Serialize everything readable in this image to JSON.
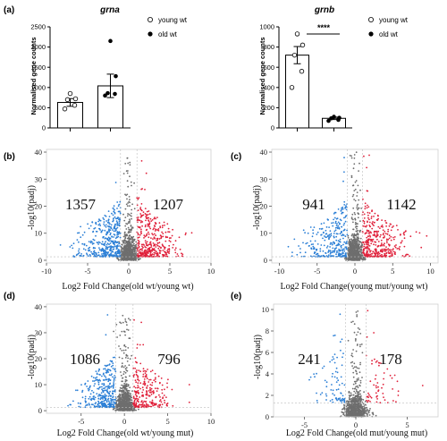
{
  "chart_data": [
    {
      "id": "a1",
      "panel": "(a)",
      "type": "bar",
      "title": "grna",
      "ylabel": "Normalised gene counts",
      "ylim": [
        0,
        2500
      ],
      "yticks": [
        0,
        500,
        1000,
        1500,
        2000,
        2500
      ],
      "categories": [
        "young wt",
        "old wt"
      ],
      "values": [
        630,
        1040
      ],
      "errors": [
        95,
        290
      ],
      "points": [
        [
          470,
          560,
          700,
          720,
          850
        ],
        [
          800,
          840,
          860,
          1280,
          2150
        ]
      ],
      "legend": [
        {
          "label": "young wt",
          "marker": "open-circle"
        },
        {
          "label": "old wt",
          "marker": "filled-circle"
        }
      ],
      "legend_position": "right"
    },
    {
      "id": "a2",
      "panel": "",
      "type": "bar",
      "title": "grnb",
      "ylabel": "Normalised gene counts",
      "ylim": [
        0,
        1000
      ],
      "yticks": [
        0,
        200,
        400,
        600,
        800,
        1000
      ],
      "categories": [
        "young wt",
        "old wt"
      ],
      "values": [
        720,
        95
      ],
      "errors": [
        85,
        12
      ],
      "points": [
        [
          400,
          560,
          720,
          820,
          930
        ],
        [
          70,
          80,
          95,
          100,
          110
        ]
      ],
      "significance": "****",
      "legend": [
        {
          "label": "young wt",
          "marker": "open-circle"
        },
        {
          "label": "old wt",
          "marker": "filled-circle"
        }
      ],
      "legend_position": "right"
    },
    {
      "id": "b",
      "panel": "(b)",
      "type": "scatter",
      "xlabel": "Log2 Fold Change(old wt/young wt)",
      "ylabel": "-log10(padj)",
      "xlim": [
        -10,
        10
      ],
      "ylim": [
        -1,
        41
      ],
      "xticks": [
        -10,
        -5,
        0,
        5,
        10
      ],
      "yticks": [
        0,
        10,
        20,
        30,
        40
      ],
      "down_count": "1357",
      "up_count": "1207",
      "fc_threshold": 1,
      "padj_line": 1.3,
      "series": [
        {
          "name": "down",
          "color": "#2b7fd6",
          "count": 1357
        },
        {
          "name": "ns",
          "color": "#6e6e6e",
          "count": 2600
        },
        {
          "name": "up",
          "color": "#e0203a",
          "count": 1207
        }
      ],
      "spread": 2.3,
      "max_x": 8.3,
      "max_y": 40
    },
    {
      "id": "c",
      "panel": "(c)",
      "type": "scatter",
      "xlabel": "Log2 Fold Change(young mut/young wt)",
      "ylabel": "-log10(padj)",
      "xlim": [
        -11,
        11
      ],
      "ylim": [
        -1,
        41
      ],
      "xticks": [
        -10,
        -5,
        0,
        5,
        10
      ],
      "yticks": [
        0,
        10,
        20,
        30,
        40
      ],
      "down_count": "941",
      "up_count": "1142",
      "fc_threshold": 1,
      "padj_line": 1.3,
      "series": [
        {
          "name": "down",
          "color": "#2b7fd6",
          "count": 941
        },
        {
          "name": "ns",
          "color": "#6e6e6e",
          "count": 2600
        },
        {
          "name": "up",
          "color": "#e0203a",
          "count": 1142
        }
      ],
      "spread": 2.6,
      "max_x": 9.5,
      "max_y": 40
    },
    {
      "id": "d",
      "panel": "(d)",
      "type": "scatter",
      "xlabel": "Log2 Fold Change(old wt/young mut)",
      "ylabel": "-log10(padj)",
      "xlim": [
        -9,
        10
      ],
      "ylim": [
        -1,
        41
      ],
      "xticks": [
        -5,
        0,
        5,
        10
      ],
      "yticks": [
        0,
        10,
        20,
        30,
        40
      ],
      "down_count": "1086",
      "up_count": "796",
      "fc_threshold": 1,
      "padj_line": 1.3,
      "series": [
        {
          "name": "down",
          "color": "#2b7fd6",
          "count": 1086
        },
        {
          "name": "ns",
          "color": "#6e6e6e",
          "count": 2600
        },
        {
          "name": "up",
          "color": "#e0203a",
          "count": 796
        }
      ],
      "spread": 1.9,
      "max_x": 7.5,
      "max_y": 38
    },
    {
      "id": "e",
      "panel": "(e)",
      "type": "scatter",
      "xlabel": "Log2 Fold Change(old mut/young mut)",
      "ylabel": "-log10(padj)",
      "xlim": [
        -8,
        8
      ],
      "ylim": [
        0,
        10.5
      ],
      "xticks": [
        -5,
        0,
        5
      ],
      "yticks": [
        0,
        2,
        4,
        6,
        8,
        10
      ],
      "down_count": "241",
      "up_count": "178",
      "fc_threshold": 1,
      "padj_line": 1.3,
      "series": [
        {
          "name": "down",
          "color": "#2b7fd6",
          "count": 241
        },
        {
          "name": "ns",
          "color": "#6e6e6e",
          "count": 2600
        },
        {
          "name": "up",
          "color": "#e0203a",
          "count": 178
        }
      ],
      "spread": 1.6,
      "max_x": 6.5,
      "max_y": 10
    }
  ]
}
